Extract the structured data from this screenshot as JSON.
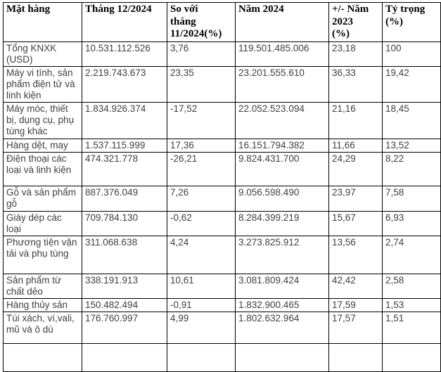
{
  "table": {
    "columns": [
      {
        "label": "Mặt hàng"
      },
      {
        "label": "Tháng 12/2024"
      },
      {
        "label": "So với\ntháng\n11/2024(%)"
      },
      {
        "label": "Năm 2024"
      },
      {
        "label": "+/- Năm\n2023\n(%)"
      },
      {
        "label": "Tỷ trọng\n(%)"
      }
    ],
    "rows": [
      {
        "cells": [
          "Tổng KNXK (USD)",
          "10.531.112.526",
          "3,76",
          "119.501.485.006",
          "23,18",
          "100"
        ]
      },
      {
        "cells": [
          "Máy vi tính, sản phẩm điện tử và linh kiện",
          "2.219.743.673",
          "23,35",
          "23.201.555.610",
          "36,33",
          "19,42"
        ]
      },
      {
        "cells": [
          "Máy móc, thiết bị, dụng cụ, phụ tùng khác",
          "1.834.926.374",
          "-17,52",
          "22.052.523.094",
          "21,16",
          "18,45"
        ]
      },
      {
        "cells": [
          "Hàng dệt, may",
          "1.537.115.999",
          "17,36",
          "16.151.794.382",
          "11,66",
          "13,52"
        ]
      },
      {
        "cells": [
          "Điện thoại các loại và linh kiện",
          "474.321.778",
          "-26,21",
          "9.824.431.700",
          "24,29",
          "8,22"
        ]
      },
      {
        "cells": [
          "Gỗ và sản phẩm gỗ",
          "887.376.049",
          "7,26",
          "9.056.598.490",
          "23,97",
          "7,58"
        ]
      },
      {
        "cells": [
          "Giày dép các loại",
          "709.784.130",
          "-0,62",
          "8.284.399.219",
          "15,67",
          "6,93"
        ]
      },
      {
        "cells": [
          "Phương tiện vận tải và phụ tùng",
          "311.068.638",
          "4,24",
          "3.273.825.912",
          "13,56",
          "2,74"
        ]
      },
      {
        "cells": [
          "Sản phẩm từ chất dẻo",
          "338.191.913",
          "10,61",
          "3.081.809.424",
          "42,42",
          "2,58"
        ]
      },
      {
        "cells": [
          "Hàng thủy sản",
          "150.482.494",
          "-0,91",
          "1.832.900.465",
          "17,59",
          "1,53"
        ]
      },
      {
        "cells": [
          "Túi xách, ví,vali, mũ và ô dù",
          "176.760.997",
          "4,99",
          "1.802.632.964",
          "17,57",
          "1,51"
        ]
      },
      {
        "cells": [
          "",
          "",
          "",
          "",
          "",
          ""
        ]
      }
    ]
  },
  "colors": {
    "border": "#000000",
    "header_text": "#000000",
    "body_text": "#404040",
    "background": "#ffffff"
  }
}
